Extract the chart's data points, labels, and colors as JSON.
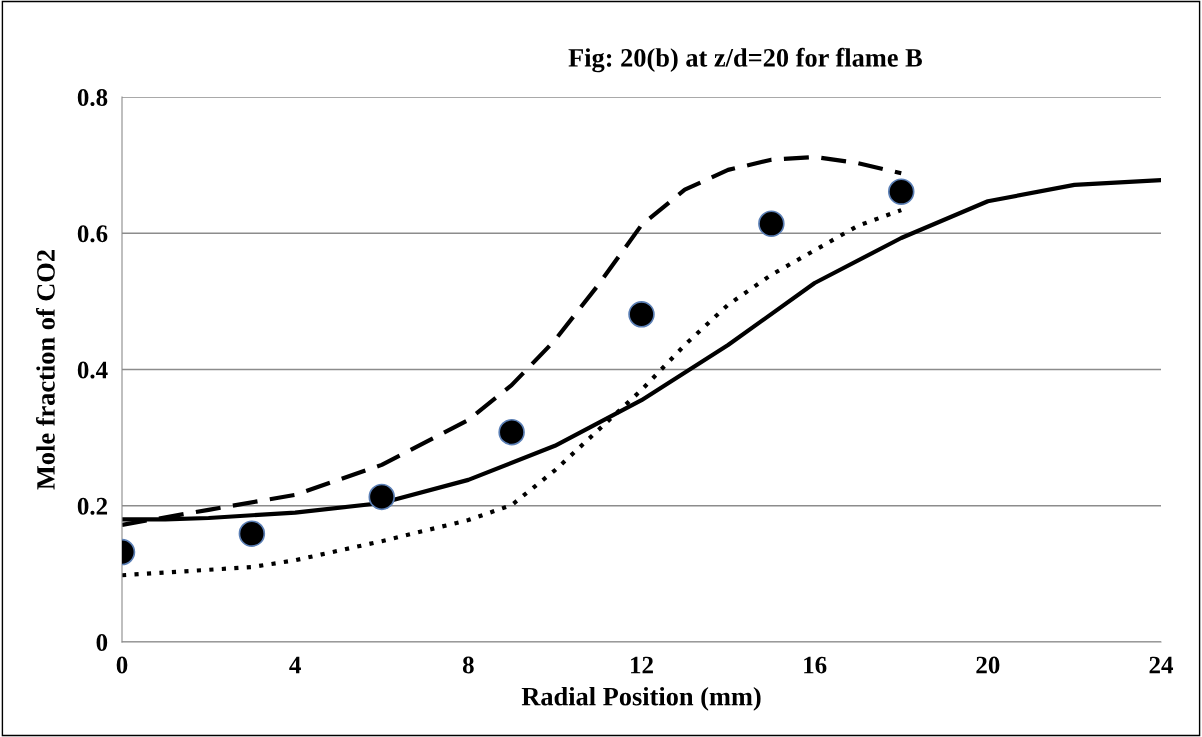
{
  "chart_data": {
    "type": "line",
    "title": "Fig: 20(b) at z/d=20 for flame B",
    "xlabel": "Radial Position (mm)",
    "ylabel": "Mole fraction of CO2",
    "xlim": [
      0,
      24
    ],
    "xticks": [
      0,
      4,
      8,
      12,
      16,
      20,
      24
    ],
    "ylim": [
      0,
      0.8
    ],
    "yticks": [
      0,
      0.2,
      0.4,
      0.6,
      0.8
    ],
    "grid": "y",
    "legend": false,
    "series": [
      {
        "color": "#000000",
        "line_style": "solid",
        "x": [
          0,
          1,
          2,
          4,
          6,
          8,
          10,
          12,
          14,
          16,
          18,
          20,
          22,
          24
        ],
        "values": [
          0.18,
          0.18,
          0.182,
          0.19,
          0.204,
          0.238,
          0.288,
          0.355,
          0.436,
          0.527,
          0.593,
          0.647,
          0.671,
          0.678
        ]
      },
      {
        "color": "#000000",
        "line_style": "dashed",
        "x": [
          0,
          2,
          4,
          6,
          8,
          9,
          10,
          11,
          12,
          13,
          14,
          15,
          16,
          17,
          18
        ],
        "values": [
          0.172,
          0.194,
          0.216,
          0.26,
          0.326,
          0.377,
          0.443,
          0.524,
          0.612,
          0.664,
          0.693,
          0.708,
          0.712,
          0.703,
          0.688
        ]
      },
      {
        "color": "#000000",
        "line_style": "dotted",
        "x": [
          0,
          2,
          3,
          4,
          6,
          8,
          9,
          10,
          11,
          12,
          13,
          14,
          15,
          16,
          17,
          18
        ],
        "values": [
          0.098,
          0.106,
          0.11,
          0.12,
          0.148,
          0.179,
          0.201,
          0.252,
          0.311,
          0.37,
          0.436,
          0.495,
          0.539,
          0.575,
          0.611,
          0.634
        ]
      },
      {
        "type": "scatter",
        "color": "#000000",
        "marker": "circle",
        "x": [
          0,
          3,
          6,
          9,
          12,
          15,
          18
        ],
        "values": [
          0.132,
          0.159,
          0.213,
          0.308,
          0.481,
          0.614,
          0.661
        ]
      }
    ]
  }
}
